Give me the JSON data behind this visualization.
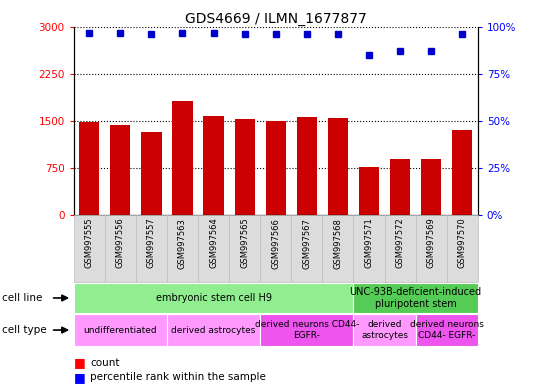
{
  "title": "GDS4669 / ILMN_1677877",
  "samples": [
    "GSM997555",
    "GSM997556",
    "GSM997557",
    "GSM997563",
    "GSM997564",
    "GSM997565",
    "GSM997566",
    "GSM997567",
    "GSM997568",
    "GSM997571",
    "GSM997572",
    "GSM997569",
    "GSM997570"
  ],
  "counts": [
    1480,
    1440,
    1320,
    1820,
    1580,
    1530,
    1500,
    1560,
    1540,
    760,
    900,
    900,
    1360
  ],
  "percentiles": [
    97,
    97,
    96,
    97,
    97,
    96,
    96,
    96,
    96,
    85,
    87,
    87,
    96
  ],
  "ylim_left": [
    0,
    3000
  ],
  "ylim_right": [
    0,
    100
  ],
  "yticks_left": [
    0,
    750,
    1500,
    2250,
    3000
  ],
  "yticks_right": [
    0,
    25,
    50,
    75,
    100
  ],
  "cell_line_groups": [
    {
      "label": "embryonic stem cell H9",
      "start": 0,
      "end": 9,
      "color": "#90EE90"
    },
    {
      "label": "UNC-93B-deficient-induced\npluripotent stem",
      "start": 9,
      "end": 13,
      "color": "#55CC55"
    }
  ],
  "cell_type_groups": [
    {
      "label": "undifferentiated",
      "start": 0,
      "end": 3,
      "color": "#FF99FF"
    },
    {
      "label": "derived astrocytes",
      "start": 3,
      "end": 6,
      "color": "#FF99FF"
    },
    {
      "label": "derived neurons CD44-\nEGFR-",
      "start": 6,
      "end": 9,
      "color": "#EE55EE"
    },
    {
      "label": "derived\nastrocytes",
      "start": 9,
      "end": 11,
      "color": "#FF99FF"
    },
    {
      "label": "derived neurons\nCD44- EGFR-",
      "start": 11,
      "end": 13,
      "color": "#EE55EE"
    }
  ],
  "bar_color": "#CC0000",
  "dot_color": "#0000CC",
  "background_color": "#ffffff"
}
